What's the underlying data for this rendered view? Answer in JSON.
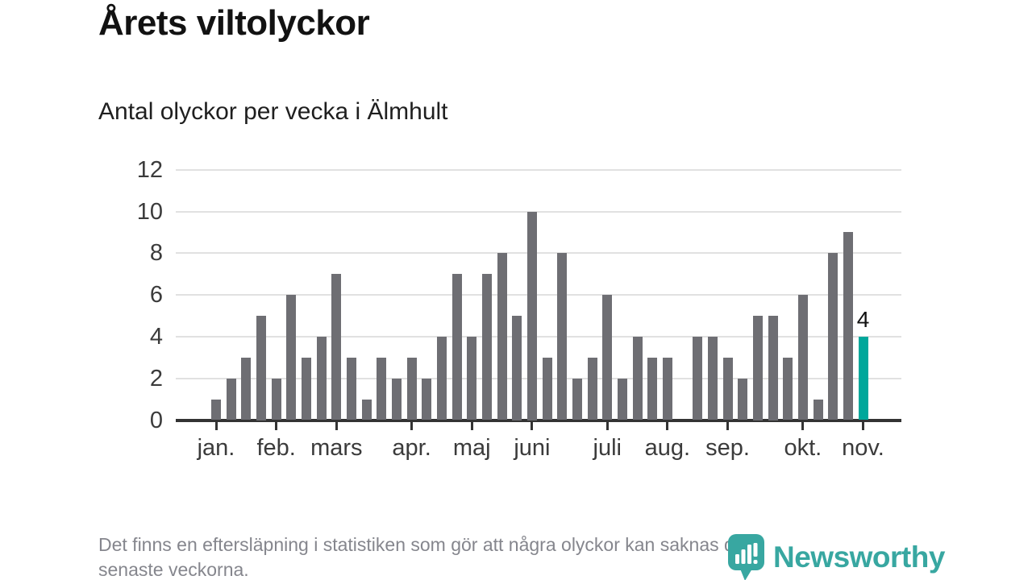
{
  "header": {
    "title": "Årets viltolyckor",
    "subtitle": "Antal olyckor per vecka i Älmhult"
  },
  "chart_data": {
    "type": "bar",
    "title": "Årets viltolyckor",
    "subtitle": "Antal olyckor per vecka i Älmhult",
    "values": [
      1,
      2,
      3,
      5,
      2,
      6,
      3,
      4,
      7,
      3,
      1,
      3,
      2,
      3,
      2,
      4,
      7,
      4,
      7,
      8,
      5,
      10,
      3,
      8,
      2,
      3,
      6,
      2,
      4,
      3,
      3,
      0,
      4,
      4,
      3,
      2,
      5,
      5,
      3,
      6,
      1,
      8,
      9,
      4
    ],
    "highlight_index": 43,
    "highlight_value_label": "4",
    "y_ticks": [
      0,
      2,
      4,
      6,
      8,
      10,
      12
    ],
    "ylim": [
      0,
      12
    ],
    "grid": true,
    "legend": null,
    "month_ticks": [
      {
        "label": "jan.",
        "index": 0
      },
      {
        "label": "feb.",
        "index": 4
      },
      {
        "label": "mars",
        "index": 8
      },
      {
        "label": "apr.",
        "index": 13
      },
      {
        "label": "maj",
        "index": 17
      },
      {
        "label": "juni",
        "index": 21
      },
      {
        "label": "juli",
        "index": 26
      },
      {
        "label": "aug.",
        "index": 30
      },
      {
        "label": "sep.",
        "index": 34
      },
      {
        "label": "okt.",
        "index": 39
      },
      {
        "label": "nov.",
        "index": 43
      }
    ],
    "colors": {
      "bar": "#6e6e73",
      "highlight": "#00a79b",
      "grid": "#e1e1e1",
      "axis": "#333333",
      "tick_label": "#3b3b3b"
    }
  },
  "footer": {
    "note_line1": "Det finns en eftersläpning i statistiken som gör att några olyckor kan saknas de",
    "note_line2": "senaste veckorna."
  },
  "logo": {
    "wordmark": "Newsworthy",
    "color": "#38a7a1"
  }
}
